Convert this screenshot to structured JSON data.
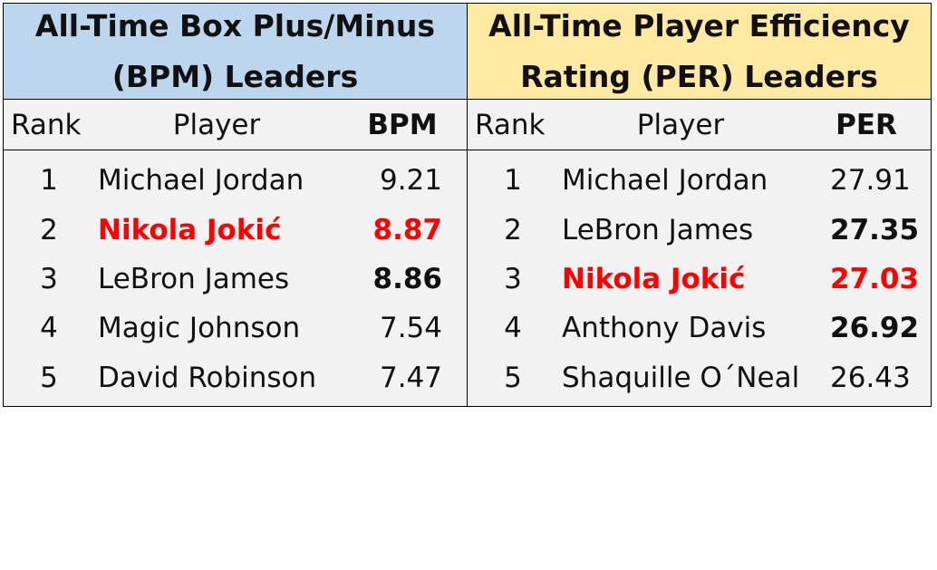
{
  "chart_data": [
    {
      "type": "table",
      "title": "All-Time Box Plus/Minus (BPM) Leaders",
      "columns": [
        "Rank",
        "Player",
        "BPM"
      ],
      "rows": [
        {
          "rank": "1",
          "player": "Michael Jordan",
          "value": "9.21",
          "style": "normal"
        },
        {
          "rank": "2",
          "player": "Nikola Jokić",
          "value": "8.87",
          "style": "highlight"
        },
        {
          "rank": "3",
          "player": "LeBron James",
          "value": "8.86",
          "style": "bold-value"
        },
        {
          "rank": "4",
          "player": "Magic Johnson",
          "value": "7.54",
          "style": "normal"
        },
        {
          "rank": "5",
          "player": "David Robinson",
          "value": "7.47",
          "style": "normal"
        }
      ],
      "header_color": "#bcd6ee"
    },
    {
      "type": "table",
      "title": "All-Time Player Efficiency Rating (PER) Leaders",
      "columns": [
        "Rank",
        "Player",
        "PER"
      ],
      "rows": [
        {
          "rank": "1",
          "player": "Michael Jordan",
          "value": "27.91",
          "style": "normal"
        },
        {
          "rank": "2",
          "player": "LeBron James",
          "value": "27.35",
          "style": "bold-value"
        },
        {
          "rank": "3",
          "player": "Nikola Jokić",
          "value": "27.03",
          "style": "highlight"
        },
        {
          "rank": "4",
          "player": "Anthony Davis",
          "value": "26.92",
          "style": "bold-value"
        },
        {
          "rank": "5",
          "player": "Shaquille O´Neal",
          "value": "26.43",
          "style": "normal"
        }
      ],
      "header_color": "#fde9a1"
    }
  ],
  "colors": {
    "highlight": "#ff0000",
    "body_background": "#f2f2f2"
  }
}
